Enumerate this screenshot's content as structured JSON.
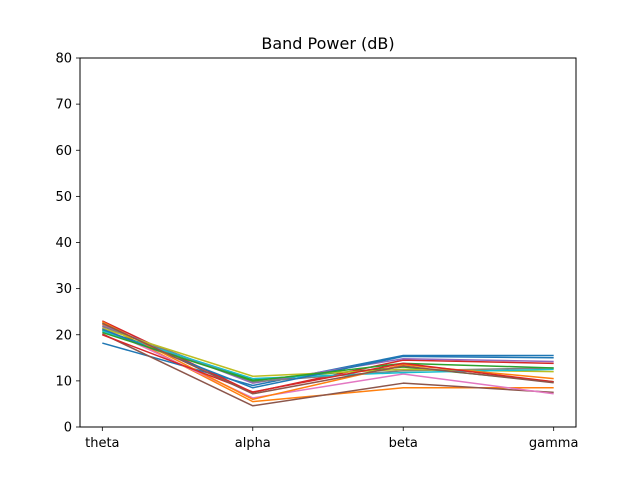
{
  "chart_data": {
    "type": "line",
    "title": "Band Power (dB)",
    "xlabel": "",
    "ylabel": "",
    "categories": [
      "theta",
      "alpha",
      "beta",
      "gamma"
    ],
    "ylim": [
      0,
      80
    ],
    "yticks": [
      0,
      10,
      20,
      30,
      40,
      50,
      60,
      70,
      80
    ],
    "grid": false,
    "series": [
      {
        "color": "#1f77b4",
        "values": [
          18.2,
          9.0,
          15.5,
          15.5
        ]
      },
      {
        "color": "#ff7f0e",
        "values": [
          22.3,
          5.5,
          8.5,
          8.5
        ]
      },
      {
        "color": "#2ca02c",
        "values": [
          21.0,
          10.2,
          13.0,
          9.8
        ]
      },
      {
        "color": "#d62728",
        "values": [
          23.0,
          7.5,
          14.5,
          13.8
        ]
      },
      {
        "color": "#9467bd",
        "values": [
          22.0,
          9.5,
          14.8,
          14.2
        ]
      },
      {
        "color": "#8c564b",
        "values": [
          20.2,
          4.6,
          9.5,
          7.5
        ]
      },
      {
        "color": "#e377c2",
        "values": [
          21.5,
          6.3,
          11.5,
          7.2
        ]
      },
      {
        "color": "#7f7f7f",
        "values": [
          21.8,
          9.8,
          12.2,
          12.8
        ]
      },
      {
        "color": "#bcbd22",
        "values": [
          21.4,
          11.0,
          12.5,
          12.0
        ]
      },
      {
        "color": "#17becf",
        "values": [
          20.8,
          10.5,
          11.8,
          12.5
        ]
      },
      {
        "color": "#1f77b4",
        "values": [
          21.2,
          8.5,
          15.3,
          15.0
        ]
      },
      {
        "color": "#ff7f0e",
        "values": [
          22.8,
          6.0,
          13.5,
          10.5
        ]
      },
      {
        "color": "#2ca02c",
        "values": [
          20.5,
          10.0,
          13.8,
          12.8
        ]
      },
      {
        "color": "#d62728",
        "values": [
          20.0,
          7.6,
          13.8,
          9.8
        ]
      },
      {
        "color": "#8c564b",
        "values": [
          22.5,
          7.2,
          13.2,
          9.6
        ]
      }
    ]
  }
}
